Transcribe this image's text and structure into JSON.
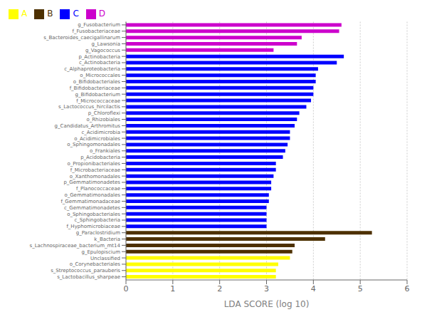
{
  "chart_data": {
    "type": "bar",
    "orientation": "horizontal",
    "stacked": true,
    "grid": true,
    "legend": "upper left",
    "xlabel": "LDA SCORE (log 10)",
    "xlim": [
      0,
      6
    ],
    "xticks": [
      0,
      1,
      2,
      3,
      4,
      5,
      6
    ],
    "categories": [
      "g_Fusobacterium",
      "f_Fusobacteriaceae",
      "s_Bacteroides_caecigallinarum",
      "g_Lawsonia",
      "g_Vagococcus",
      "p_Actinobacteria",
      "c_Actinobacteria",
      "c_Alphaproteobacteria",
      "o_Micrococcales",
      "o_Bifidobacteriales",
      "f_Bifidobacteriaceae",
      "g_Bifidobacterium",
      "f_Micrococcaceae",
      "s_Lactococcus_hircilactis",
      "p_Chloroflexi",
      "o_Rhizobiales",
      "g_Candidatus_Arthromitus",
      "c_Acidimicrobia",
      "o_Acidimicrobiales",
      "o_Sphingomonadales",
      "o_Frankiales",
      "p_Acidobacteria",
      "o_Propionibacteriales",
      "f_Microbacteriaceae",
      "o_Xanthomonadales",
      "p_Gemmatimonadetes",
      "f_Planococcaceae",
      "o_Gemmatimonadales",
      "f_Gemmatimonadaceae",
      "c_Gemmatimonadetes",
      "o_Sphingobacteriales",
      "c_Sphingobacteria",
      "f_Hyphomicrobiaceae",
      "g_Paraclostridium",
      "k_Bacteria",
      "s_Lachnospiraceae_bacterium_mt14",
      "g_Epulopiscium",
      "Unclassified",
      "o_Corynebacteriales",
      "s_Streptococcus_parauberis",
      "s_Lactobacillus_sharpeae"
    ],
    "series": [
      {
        "name": "A",
        "color": "#FFFF00",
        "values": [
          null,
          null,
          null,
          null,
          null,
          null,
          null,
          null,
          null,
          null,
          null,
          null,
          null,
          null,
          null,
          null,
          null,
          null,
          null,
          null,
          null,
          null,
          null,
          null,
          null,
          null,
          null,
          null,
          null,
          null,
          null,
          null,
          null,
          null,
          null,
          null,
          null,
          3.5,
          3.25,
          3.2,
          3.2
        ]
      },
      {
        "name": "B",
        "color": "#4d3000",
        "values": [
          null,
          null,
          null,
          null,
          null,
          null,
          null,
          null,
          null,
          null,
          null,
          null,
          null,
          null,
          null,
          null,
          null,
          null,
          null,
          null,
          null,
          null,
          null,
          null,
          null,
          null,
          null,
          null,
          null,
          null,
          null,
          null,
          null,
          5.25,
          4.25,
          3.6,
          3.55,
          null,
          null,
          null,
          null
        ]
      },
      {
        "name": "C",
        "color": "#0000FF",
        "values": [
          null,
          null,
          null,
          null,
          null,
          4.65,
          4.5,
          4.1,
          4.05,
          4.05,
          4.0,
          4.0,
          3.95,
          3.85,
          3.7,
          3.65,
          3.6,
          3.5,
          3.5,
          3.45,
          3.4,
          3.35,
          3.2,
          3.2,
          3.15,
          3.1,
          3.1,
          3.05,
          3.05,
          3.0,
          3.0,
          3.0,
          3.0,
          null,
          null,
          null,
          null,
          null,
          null,
          null,
          null
        ]
      },
      {
        "name": "D",
        "color": "#CC00CC",
        "values": [
          4.6,
          4.55,
          3.75,
          3.65,
          3.15,
          null,
          null,
          null,
          null,
          null,
          null,
          null,
          null,
          null,
          null,
          null,
          null,
          null,
          null,
          null,
          null,
          null,
          null,
          null,
          null,
          null,
          null,
          null,
          null,
          null,
          null,
          null,
          null,
          null,
          null,
          null,
          null,
          null,
          null,
          null,
          null
        ]
      }
    ]
  }
}
